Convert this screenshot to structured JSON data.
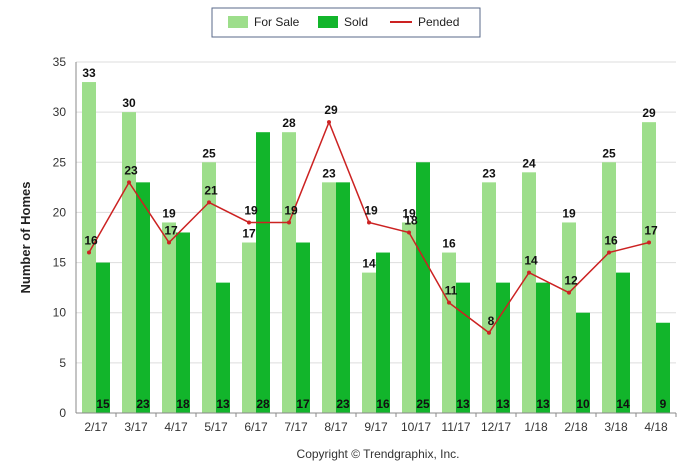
{
  "chart_data": {
    "type": "bar",
    "title": "",
    "xlabel": "",
    "ylabel": "Number of Homes",
    "ylim": [
      0,
      35
    ],
    "yticks": [
      0,
      5,
      10,
      15,
      20,
      25,
      30,
      35
    ],
    "grid": true,
    "legend_position": "top-center",
    "categories": [
      "2/17",
      "3/17",
      "4/17",
      "5/17",
      "6/17",
      "7/17",
      "8/17",
      "9/17",
      "10/17",
      "11/17",
      "12/17",
      "1/18",
      "2/18",
      "3/18",
      "4/18"
    ],
    "series": [
      {
        "name": "For Sale",
        "kind": "bar",
        "color": "#9dde8b",
        "values": [
          33,
          30,
          19,
          25,
          17,
          28,
          23,
          14,
          19,
          16,
          23,
          24,
          19,
          25,
          29
        ]
      },
      {
        "name": "Sold",
        "kind": "bar",
        "color": "#12b52b",
        "values": [
          15,
          23,
          18,
          13,
          28,
          17,
          23,
          16,
          25,
          13,
          13,
          13,
          10,
          14,
          9
        ]
      },
      {
        "name": "Pended",
        "kind": "line",
        "color": "#cc2222",
        "values": [
          16,
          23,
          17,
          21,
          19,
          19,
          29,
          19,
          18,
          11,
          8,
          14,
          12,
          16,
          17
        ]
      }
    ]
  },
  "footer": {
    "copyright": "Copyright © Trendgraphix, Inc."
  }
}
